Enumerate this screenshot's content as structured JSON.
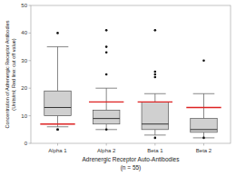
{
  "chart_data": {
    "type": "box",
    "xlabel": "Adrenergic Receptor Auto-Antibodies\n(n = 55)",
    "ylabel": "Concentration of Adrenergic Receptor Antibodies\n(Units/ml; Red line: cut off value)",
    "categories": [
      "Alpha 1",
      "Alpha 2",
      "Beta 1",
      "Beta 2"
    ],
    "boxes": [
      {
        "q1": 10,
        "median": 13,
        "q3": 19,
        "whisker_low": 6,
        "whisker_high": 35,
        "fliers_high": [
          40
        ],
        "fliers_low": [
          5,
          5
        ]
      },
      {
        "q1": 7,
        "median": 9,
        "q3": 12,
        "whisker_low": 5,
        "whisker_high": 20,
        "fliers_high": [
          41,
          35,
          33,
          25
        ],
        "fliers_low": [
          5
        ]
      },
      {
        "q1": 5,
        "median": 7,
        "q3": 15,
        "whisker_low": 3,
        "whisker_high": 18,
        "fliers_high": [
          41,
          26,
          25,
          24
        ],
        "fliers_low": [
          2
        ]
      },
      {
        "q1": 4,
        "median": 5,
        "q3": 9,
        "whisker_low": 2,
        "whisker_high": 18,
        "fliers_high": [
          30
        ],
        "fliers_low": [
          2
        ]
      }
    ],
    "cutoff": {
      "values": [
        7,
        15,
        15,
        13
      ],
      "color": "#dd2222"
    },
    "color": "#d0d0d0",
    "ylim": [
      0,
      50
    ],
    "yticks": [
      0,
      10,
      20,
      30,
      40,
      50
    ],
    "grid": false
  }
}
